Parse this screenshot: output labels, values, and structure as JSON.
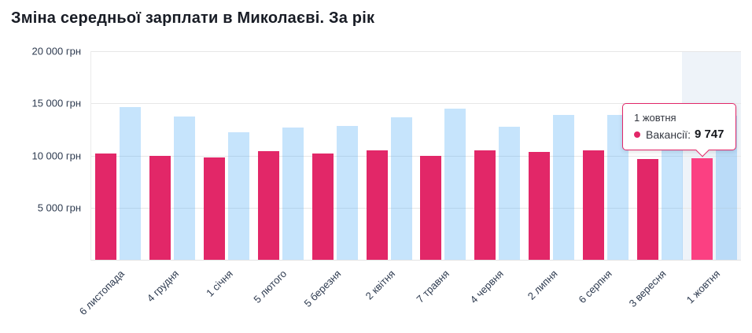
{
  "chart": {
    "title": "Зміна середньої зарплати в Миколаєві. За рік"
  },
  "tooltip": {
    "date": "1 жовтня",
    "series_label": "Вакансії:",
    "value": "9 747",
    "bullet_color": "#e22768"
  },
  "chart_data": {
    "type": "bar",
    "title": "Зміна середньої зарплати в Миколаєві. За рік",
    "categories": [
      "6 листопада",
      "4 грудня",
      "1 січня",
      "5 лютого",
      "5 березня",
      "2 квітня",
      "7 травня",
      "4 червня",
      "2 липня",
      "6 серпня",
      "3 вересня",
      "1 жовтня"
    ],
    "series": [
      {
        "name": "Вакансії",
        "color": "#e22768",
        "highlight_color": "#fb4082",
        "values": [
          10200,
          10000,
          9850,
          10400,
          10200,
          10500,
          10000,
          10500,
          10350,
          10500,
          9650,
          9747
        ]
      },
      {
        "name": "",
        "color": "rgba(66,165,245,0.30)",
        "highlight_color": "rgba(66,165,245,0.30)",
        "values": [
          14650,
          13750,
          12200,
          12700,
          12850,
          13650,
          14500,
          12750,
          13900,
          13900,
          13900,
          13800
        ]
      }
    ],
    "ylim": [
      0,
      20000
    ],
    "yticks": [
      {
        "value": 20000,
        "label": "20 000 грн"
      },
      {
        "value": 15000,
        "label": "15 000 грн"
      },
      {
        "value": 10000,
        "label": "10 000 грн"
      },
      {
        "value": 5000,
        "label": "5 000 грн"
      }
    ],
    "unit": "грн",
    "highlighted_index": 11,
    "grid": true,
    "legend": false
  },
  "colors": {
    "band": "#eef3f9",
    "grid": "#e7e7e7",
    "axis_label": "#2d3a4f",
    "title": "#181c25",
    "tooltip_border": "#e22768",
    "background": "#ffffff"
  }
}
